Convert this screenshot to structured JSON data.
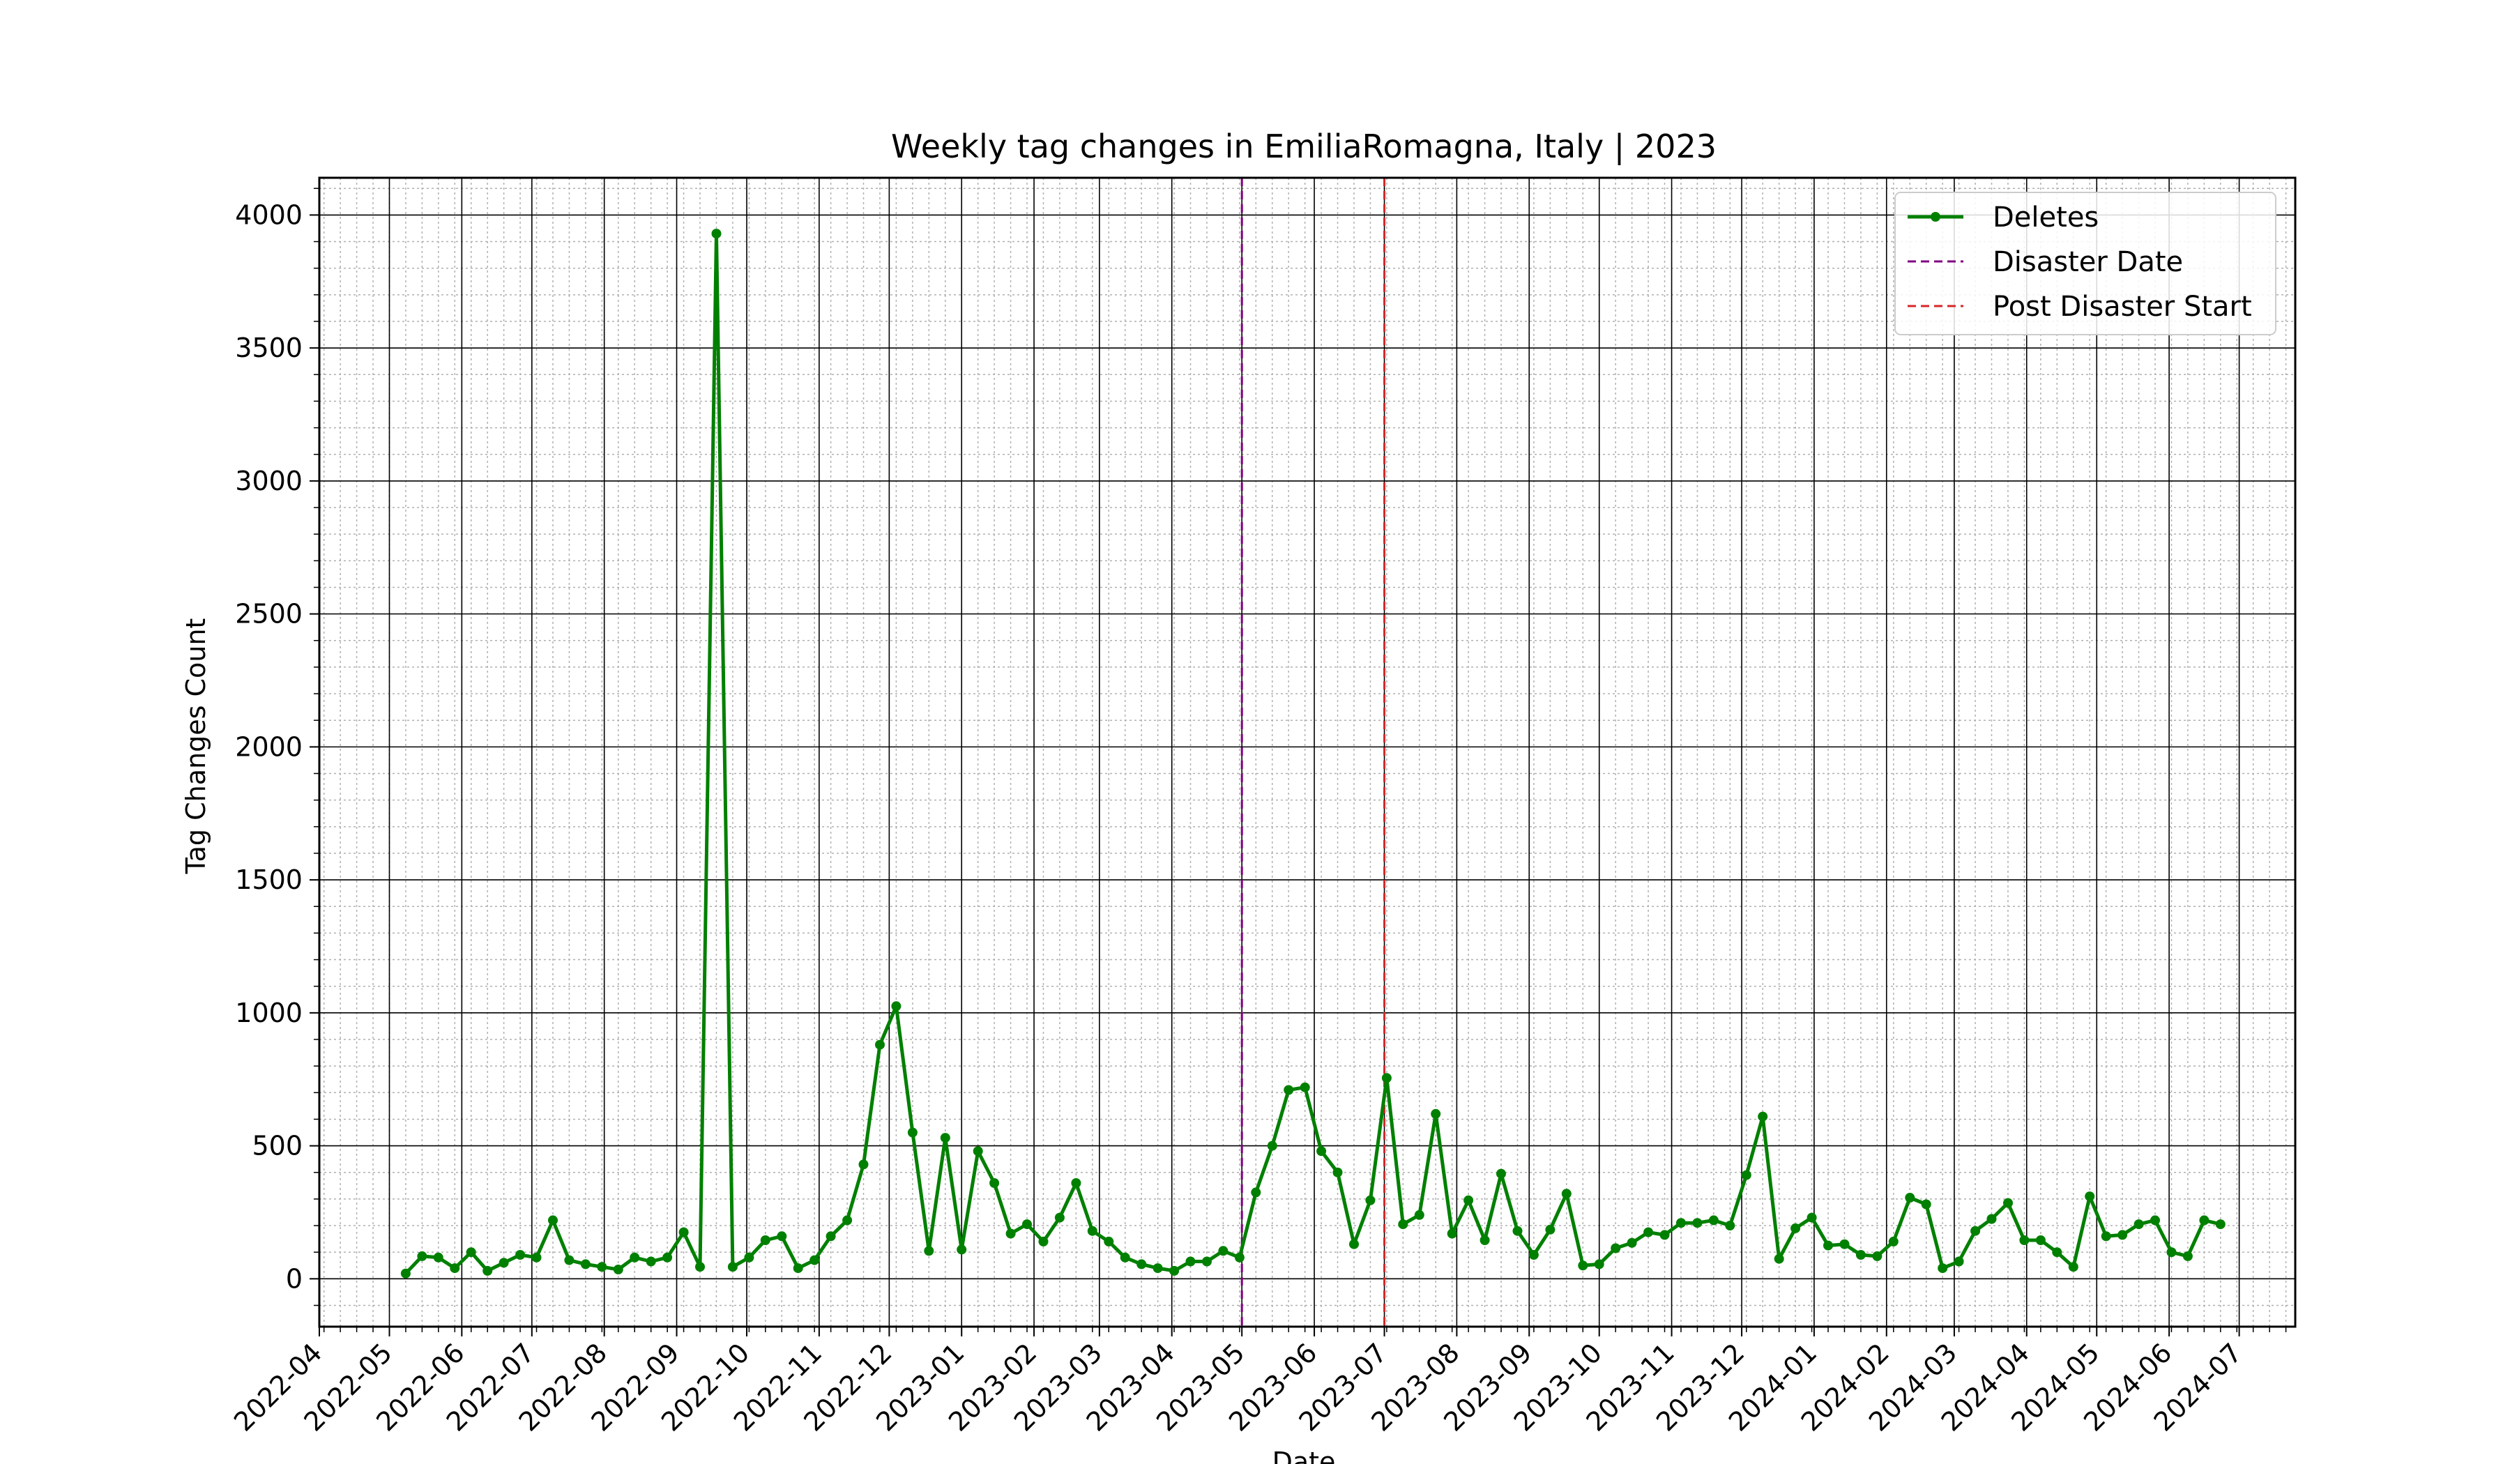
{
  "chart_data": {
    "type": "line",
    "title": "Weekly tag changes in EmiliaRomagna, Italy | 2023",
    "xlabel": "Date",
    "ylabel": "Tag Changes Count",
    "xlim": [
      "2022-04-01",
      "2024-07-25"
    ],
    "ylim": [
      -180,
      4140
    ],
    "grid": {
      "major": true,
      "minor": true
    },
    "legend_position": "upper right",
    "x_ticks": [
      "2022-04",
      "2022-05",
      "2022-06",
      "2022-07",
      "2022-08",
      "2022-09",
      "2022-10",
      "2022-11",
      "2022-12",
      "2023-01",
      "2023-02",
      "2023-03",
      "2023-04",
      "2023-05",
      "2023-06",
      "2023-07",
      "2023-08",
      "2023-09",
      "2023-10",
      "2023-11",
      "2023-12",
      "2024-01",
      "2024-02",
      "2024-03",
      "2024-04",
      "2024-05",
      "2024-06",
      "2024-07"
    ],
    "y_ticks": [
      0,
      500,
      1000,
      1500,
      2000,
      2500,
      3000,
      3500,
      4000
    ],
    "series": [
      {
        "name": "Deletes",
        "color": "#008000",
        "start_date": "2022-05-08",
        "interval_days": 7,
        "values": [
          20,
          85,
          80,
          40,
          100,
          30,
          60,
          90,
          80,
          220,
          70,
          55,
          45,
          35,
          80,
          65,
          80,
          175,
          45,
          3930,
          45,
          80,
          145,
          160,
          40,
          70,
          160,
          220,
          430,
          880,
          1025,
          550,
          105,
          530,
          110,
          480,
          360,
          170,
          205,
          140,
          230,
          360,
          180,
          140,
          80,
          55,
          40,
          30,
          65,
          65,
          105,
          80,
          325,
          500,
          710,
          720,
          480,
          400,
          130,
          295,
          755,
          205,
          240,
          620,
          170,
          295,
          145,
          395,
          180,
          90,
          185,
          320,
          50,
          55,
          115,
          135,
          175,
          165,
          210,
          210,
          220,
          200,
          390,
          610,
          75,
          190,
          230,
          125,
          130,
          90,
          85,
          140,
          305,
          280,
          40,
          65,
          180,
          225,
          285,
          145,
          145,
          100,
          45,
          310,
          160,
          165,
          205,
          220,
          100,
          85,
          220,
          205
        ]
      }
    ],
    "vertical_lines": [
      {
        "name": "Disaster Date",
        "date": "2023-05-01",
        "color": "#800080",
        "style": "dashed"
      },
      {
        "name": "Post Disaster Start",
        "date": "2023-07-01",
        "color": "#d62728",
        "style": "dashed"
      }
    ]
  }
}
